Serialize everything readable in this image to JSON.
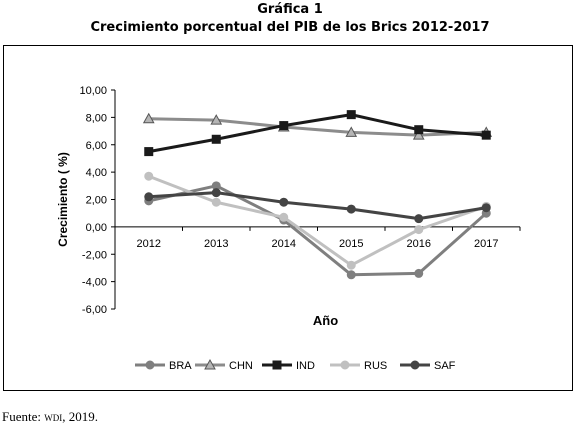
{
  "header": {
    "figure_label": "Gráfica 1",
    "title": "Crecimiento porcentual del PIB de los Brics 2012-2017"
  },
  "source": {
    "prefix": "Fuente:",
    "org": "wdi",
    "suffix": ", 2019."
  },
  "chart_data": {
    "type": "line",
    "xlabel": "Año",
    "ylabel": "Crecimiento ( %)",
    "categories": [
      "2012",
      "2013",
      "2014",
      "2015",
      "2016",
      "2017"
    ],
    "ylim": [
      -6,
      10
    ],
    "ytick_labels": [
      "10,00",
      "8,00",
      "6,00",
      "4,00",
      "2,00",
      "0,00",
      "-2,00",
      "-4,00",
      "-6,00"
    ],
    "ytick_values": [
      10,
      8,
      6,
      4,
      2,
      0,
      -2,
      -4,
      -6
    ],
    "grid": false,
    "legend_position": "bottom",
    "series": [
      {
        "name": "BRA",
        "values": [
          1.9,
          3.0,
          0.5,
          -3.5,
          -3.4,
          1.0
        ],
        "color": "#7f7f7f",
        "marker": "circle"
      },
      {
        "name": "CHN",
        "values": [
          7.9,
          7.8,
          7.3,
          6.9,
          6.7,
          6.9
        ],
        "color": "#8c8c8c",
        "marker": "triangle"
      },
      {
        "name": "IND",
        "values": [
          5.5,
          6.4,
          7.4,
          8.2,
          7.1,
          6.7
        ],
        "color": "#1a1a1a",
        "marker": "square"
      },
      {
        "name": "RUS",
        "values": [
          3.7,
          1.8,
          0.7,
          -2.8,
          -0.2,
          1.5
        ],
        "color": "#c0c0c0",
        "marker": "circle"
      },
      {
        "name": "SAF",
        "values": [
          2.2,
          2.5,
          1.8,
          1.3,
          0.6,
          1.4
        ],
        "color": "#444444",
        "marker": "circle"
      }
    ]
  }
}
